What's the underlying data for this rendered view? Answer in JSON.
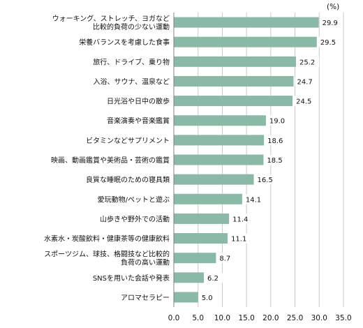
{
  "chart_data": {
    "type": "bar",
    "orientation": "horizontal",
    "unit_label": "(%)",
    "categories": [
      [
        "ウォーキング、ストレッチ、ヨガなど",
        "比較的負荷の少ない運動"
      ],
      [
        "栄養バランスを考慮した食事"
      ],
      [
        "旅行、ドライブ、乗り物"
      ],
      [
        "入浴、サウナ、温泉など"
      ],
      [
        "日光浴や日中の散歩"
      ],
      [
        "音楽演奏や音楽鑑賞"
      ],
      [
        "ビタミンなどサプリメント"
      ],
      [
        "映画、動画鑑賞や美術品・芸術の鑑賞"
      ],
      [
        "良質な睡眠のための寝具類"
      ],
      [
        "愛玩動物/ペットと遊ぶ"
      ],
      [
        "山歩きや野外での活動"
      ],
      [
        "水素水・炭酸飲料・健康茶等の健康飲料"
      ],
      [
        "スポーツジム、球技、格闘技など比較的",
        "負荷の高い運動"
      ],
      [
        "SNSを用いた会話や発表"
      ],
      [
        "アロマセラピー"
      ]
    ],
    "values": [
      29.9,
      29.5,
      25.2,
      24.7,
      24.5,
      19.0,
      18.6,
      18.5,
      16.5,
      14.1,
      11.4,
      11.1,
      8.7,
      6.2,
      5.0
    ],
    "value_labels": [
      "29.9",
      "29.5",
      "25.2",
      "24.7",
      "24.5",
      "19.0",
      "18.6",
      "18.5",
      "16.5",
      "14.1",
      "11.4",
      "11.1",
      "8.7",
      "6.2",
      "5.0"
    ],
    "x_ticks": [
      "0.0",
      "5.0",
      "10.0",
      "15.0",
      "20.0",
      "25.0",
      "30.0",
      "35.0"
    ],
    "xlim": [
      0,
      35
    ],
    "grid": "vertical",
    "bar_color": "#8ab9a5",
    "grid_color": "#c8c8c8",
    "axis_color": "#808080",
    "label_box_color": "#ffffff"
  }
}
